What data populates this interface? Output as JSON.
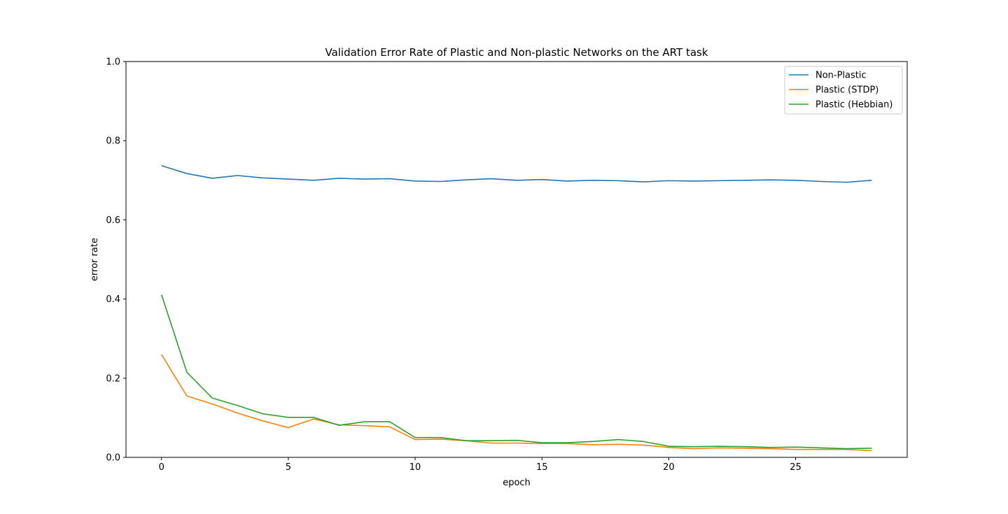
{
  "chart_data": {
    "type": "line",
    "title": "Validation Error Rate of Plastic and Non-plastic Networks on the ART task",
    "xlabel": "epoch",
    "ylabel": "error rate",
    "xlim": [
      -1.4,
      29.4
    ],
    "ylim": [
      0.0,
      1.0
    ],
    "xticks": [
      0,
      5,
      10,
      15,
      20,
      25
    ],
    "yticks": [
      0.0,
      0.2,
      0.4,
      0.6,
      0.8,
      1.0
    ],
    "xtick_labels": [
      "0",
      "5",
      "10",
      "15",
      "20",
      "25"
    ],
    "ytick_labels": [
      "0.0",
      "0.2",
      "0.4",
      "0.6",
      "0.8",
      "1.0"
    ],
    "grid": false,
    "legend_position": "top-right",
    "x": [
      0,
      1,
      2,
      3,
      4,
      5,
      6,
      7,
      8,
      9,
      10,
      11,
      12,
      13,
      14,
      15,
      16,
      17,
      18,
      19,
      20,
      21,
      22,
      23,
      24,
      25,
      26,
      27,
      28
    ],
    "series": [
      {
        "name": "Non-Plastic",
        "color": "#1f77b4",
        "values": [
          0.737,
          0.717,
          0.705,
          0.712,
          0.706,
          0.703,
          0.7,
          0.705,
          0.703,
          0.704,
          0.698,
          0.697,
          0.701,
          0.704,
          0.7,
          0.702,
          0.698,
          0.7,
          0.699,
          0.696,
          0.699,
          0.698,
          0.699,
          0.7,
          0.701,
          0.7,
          0.697,
          0.695,
          0.7
        ]
      },
      {
        "name": "Plastic (STDP)",
        "color": "#ff7f0e",
        "values": [
          0.26,
          0.155,
          0.135,
          0.112,
          0.092,
          0.075,
          0.097,
          0.082,
          0.08,
          0.077,
          0.045,
          0.046,
          0.042,
          0.036,
          0.036,
          0.035,
          0.035,
          0.032,
          0.033,
          0.031,
          0.025,
          0.022,
          0.024,
          0.023,
          0.022,
          0.02,
          0.02,
          0.02,
          0.017
        ]
      },
      {
        "name": "Plastic (Hebbian)",
        "color": "#2ca02c",
        "values": [
          0.411,
          0.215,
          0.15,
          0.131,
          0.11,
          0.101,
          0.101,
          0.081,
          0.09,
          0.09,
          0.05,
          0.05,
          0.042,
          0.042,
          0.043,
          0.037,
          0.037,
          0.04,
          0.045,
          0.04,
          0.028,
          0.027,
          0.028,
          0.027,
          0.025,
          0.026,
          0.024,
          0.022,
          0.023
        ]
      }
    ]
  }
}
